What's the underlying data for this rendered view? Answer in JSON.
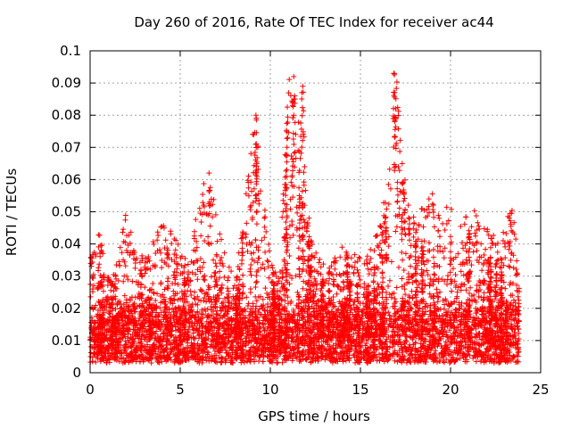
{
  "chart_data": {
    "type": "scatter",
    "title": "Day 260 of 2016, Rate Of TEC Index for receiver ac44",
    "xlabel": "GPS time / hours",
    "ylabel": "ROTI / TECUs",
    "xlim": [
      0,
      25
    ],
    "ylim": [
      0,
      0.1
    ],
    "xticks": [
      0,
      5,
      10,
      15,
      20,
      25
    ],
    "xtick_labels": [
      "0",
      "5",
      "10",
      "15",
      "20",
      "25"
    ],
    "yticks": [
      0,
      0.01,
      0.02,
      0.03,
      0.04,
      0.05,
      0.06,
      0.07,
      0.08,
      0.09,
      0.1
    ],
    "ytick_labels": [
      "0",
      "0.01",
      "0.02",
      "0.03",
      "0.04",
      "0.05",
      "0.06",
      "0.07",
      "0.08",
      "0.09",
      "0.1"
    ],
    "grid": true,
    "marker": "+",
    "color": "#ff0000",
    "x_range_of_data": [
      0.0,
      23.8
    ],
    "envelope": {
      "hours": [
        0,
        0.5,
        1,
        1.5,
        2,
        2.5,
        3,
        3.5,
        4,
        4.5,
        5,
        5.5,
        6,
        6.5,
        7,
        7.5,
        8,
        8.5,
        9,
        9.5,
        10,
        10.5,
        11,
        11.5,
        12,
        12.5,
        13,
        13.5,
        14,
        14.5,
        15,
        15.5,
        16,
        16.5,
        17,
        17.5,
        18,
        18.5,
        19,
        19.5,
        20,
        20.5,
        21,
        21.5,
        22,
        22.5,
        23,
        23.5,
        23.8
      ],
      "typical_max": [
        0.035,
        0.046,
        0.03,
        0.034,
        0.052,
        0.038,
        0.036,
        0.041,
        0.048,
        0.044,
        0.04,
        0.033,
        0.055,
        0.062,
        0.053,
        0.036,
        0.03,
        0.046,
        0.08,
        0.065,
        0.035,
        0.03,
        0.092,
        0.088,
        0.052,
        0.04,
        0.034,
        0.036,
        0.04,
        0.038,
        0.036,
        0.038,
        0.045,
        0.06,
        0.093,
        0.06,
        0.05,
        0.052,
        0.056,
        0.048,
        0.055,
        0.045,
        0.052,
        0.05,
        0.045,
        0.042,
        0.048,
        0.052,
        0.04
      ]
    },
    "peaks": [
      {
        "x": 9.2,
        "y": 0.08
      },
      {
        "x": 9.3,
        "y": 0.07
      },
      {
        "x": 11.3,
        "y": 0.092
      },
      {
        "x": 11.35,
        "y": 0.086
      },
      {
        "x": 11.3,
        "y": 0.08
      },
      {
        "x": 11.8,
        "y": 0.089
      },
      {
        "x": 11.75,
        "y": 0.087
      },
      {
        "x": 16.85,
        "y": 0.093
      },
      {
        "x": 16.9,
        "y": 0.087
      },
      {
        "x": 16.95,
        "y": 0.082
      },
      {
        "x": 16.9,
        "y": 0.078
      },
      {
        "x": 6.6,
        "y": 0.062
      },
      {
        "x": 11.9,
        "y": 0.064
      },
      {
        "x": 17.1,
        "y": 0.064
      }
    ]
  }
}
